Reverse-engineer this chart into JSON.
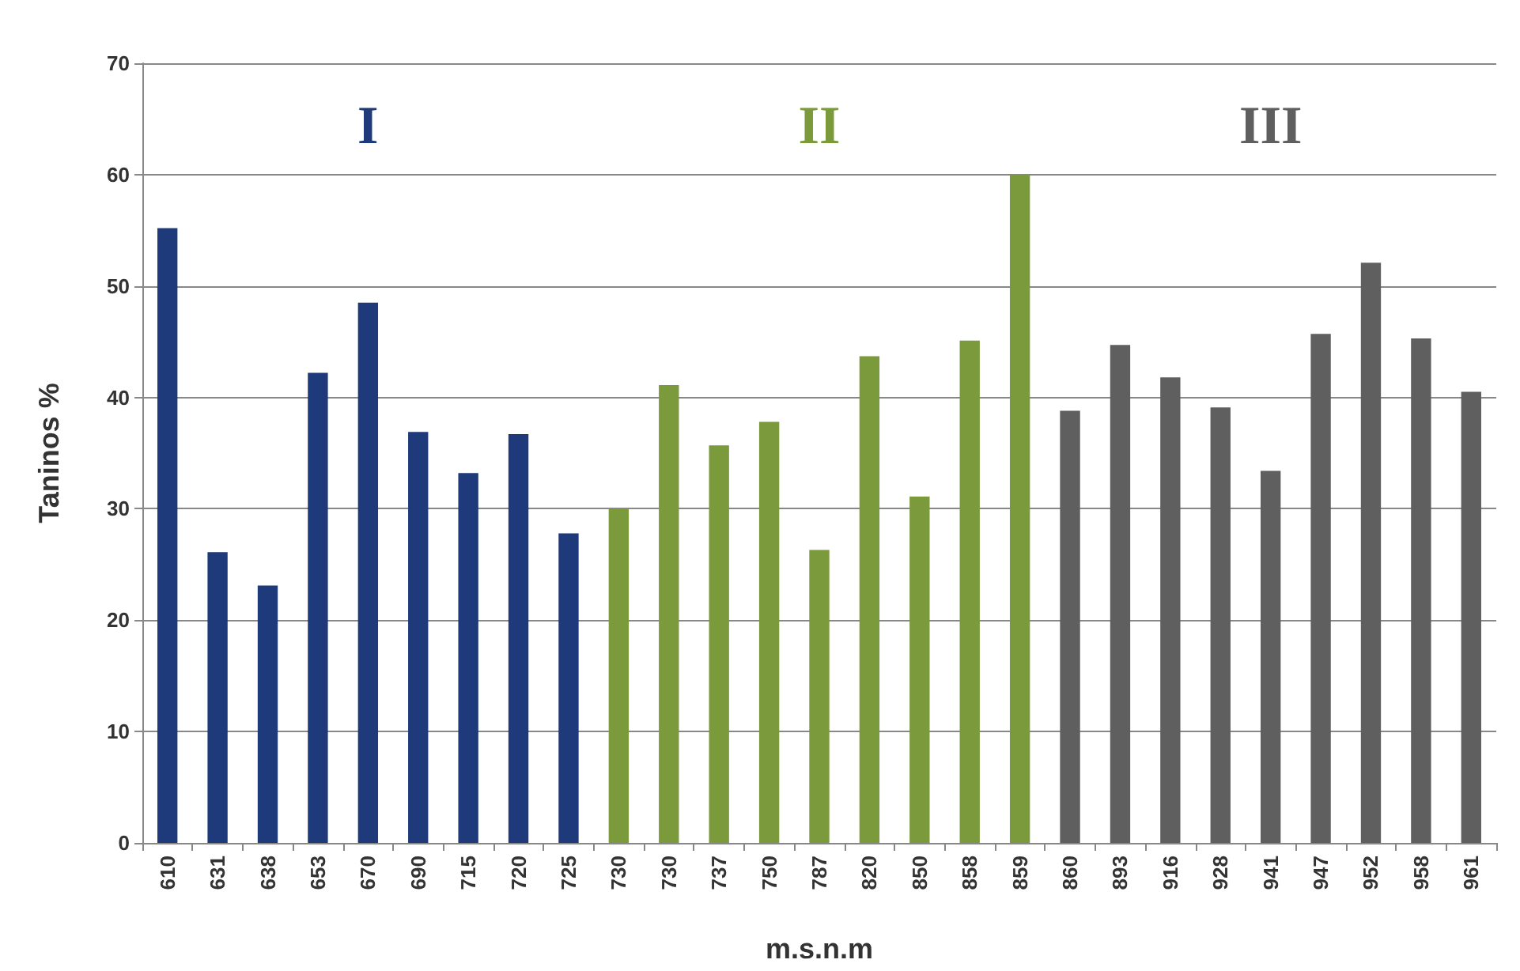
{
  "chart_data": {
    "type": "bar",
    "xlabel": "m.s.n.m",
    "ylabel": "Taninos %",
    "stacked": true,
    "categories": [
      "610",
      "631",
      "638",
      "653",
      "670",
      "690",
      "715",
      "720",
      "725",
      "730",
      "730",
      "737",
      "750",
      "787",
      "820",
      "850",
      "858",
      "859",
      "860",
      "893",
      "916",
      "928",
      "941",
      "947",
      "952",
      "958",
      "961"
    ],
    "series": [
      {
        "name": "I",
        "color": "#1f3a7a",
        "values": [
          55.2,
          26.1,
          23.1,
          42.2,
          48.5,
          36.9,
          33.2,
          36.7,
          27.8,
          null,
          null,
          null,
          null,
          null,
          null,
          null,
          null,
          null,
          null,
          null,
          null,
          null,
          null,
          null,
          null,
          null,
          null
        ]
      },
      {
        "name": "II",
        "color": "#7a9a3c",
        "values": [
          null,
          null,
          null,
          null,
          null,
          null,
          null,
          null,
          null,
          30.0,
          41.1,
          35.7,
          37.8,
          26.3,
          43.7,
          31.1,
          45.1,
          60.0,
          null,
          null,
          null,
          null,
          null,
          null,
          null,
          null,
          null
        ]
      },
      {
        "name": "III",
        "color": "#5f5f5f",
        "values": [
          null,
          null,
          null,
          null,
          null,
          null,
          null,
          null,
          null,
          null,
          null,
          null,
          null,
          null,
          null,
          null,
          null,
          null,
          38.8,
          44.7,
          41.8,
          39.1,
          33.4,
          45.7,
          52.1,
          45.3,
          40.5
        ]
      }
    ],
    "ylim": [
      0,
      70
    ],
    "yticks": [
      0,
      10,
      20,
      30,
      40,
      50,
      60,
      70
    ],
    "grid": "y",
    "legend": false
  }
}
